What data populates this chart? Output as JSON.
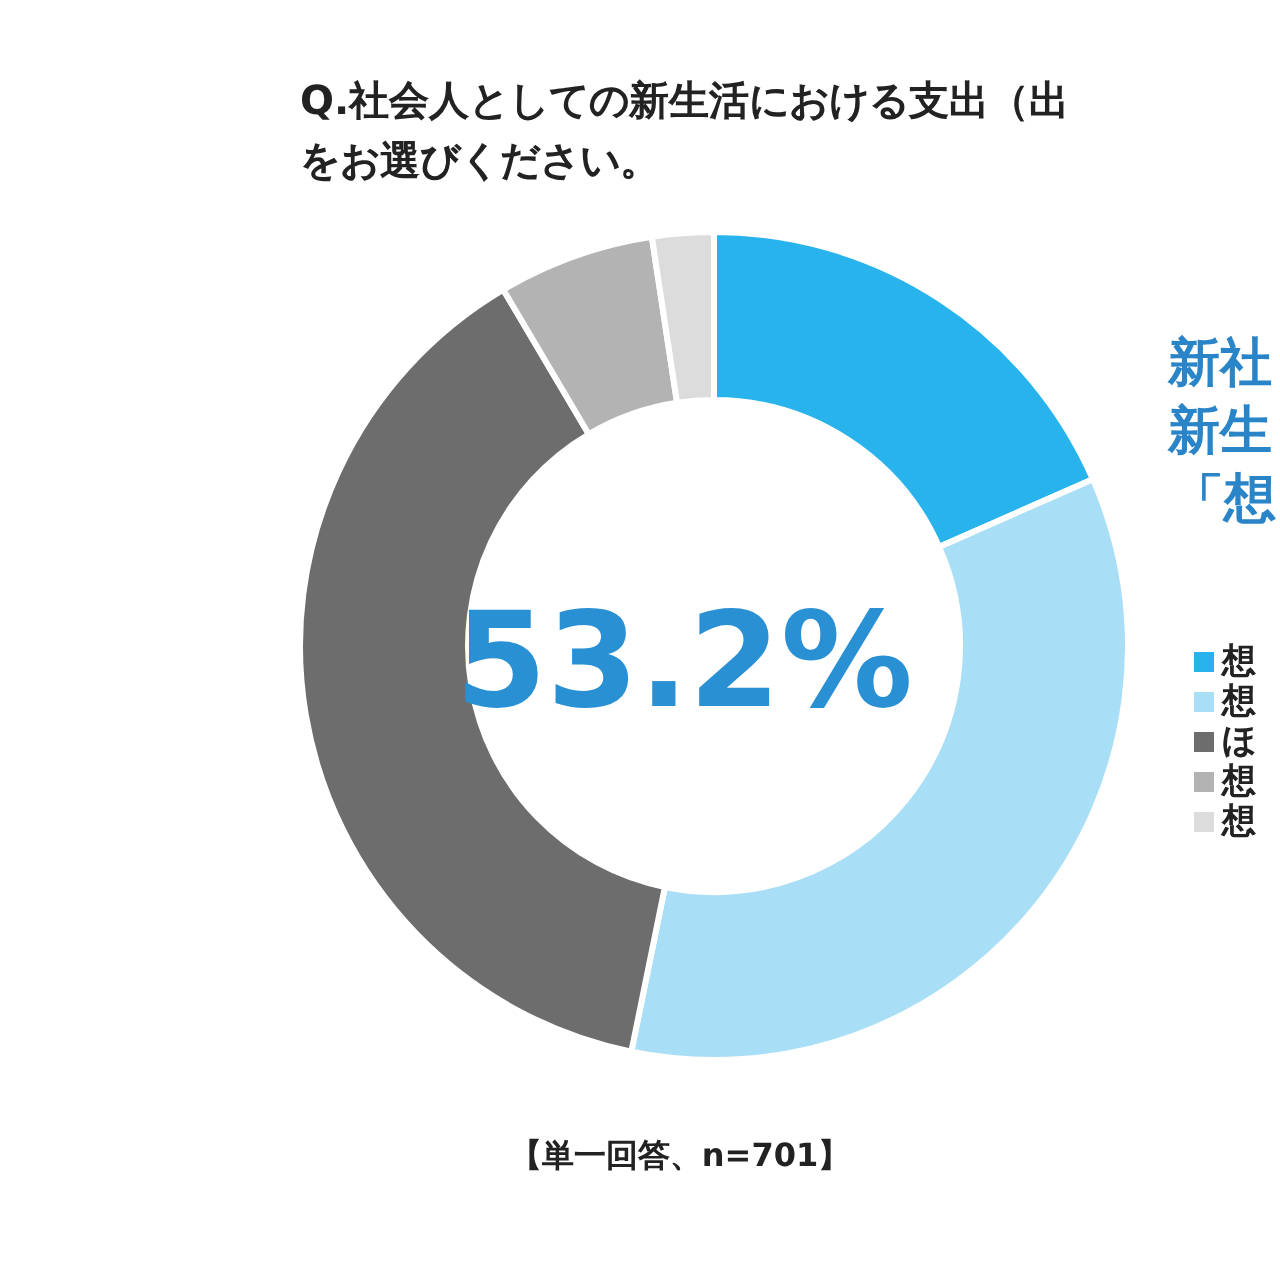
{
  "chart_data": {
    "type": "donut",
    "title": "Q.社会人としての新生活における支出（出",
    "subtitle": "をお選びください。",
    "categories": [
      "想",
      "想",
      "ほ",
      "想",
      "想"
    ],
    "values": [
      18.4,
      34.8,
      38.3,
      6.1,
      2.4
    ],
    "colors": [
      "#29b3ec",
      "#a8def6",
      "#6d6d6d",
      "#b3b3b3",
      "#dcdcdc"
    ],
    "legend": "right",
    "annotations": [
      "53.2%",
      "新社",
      "新生",
      "「想",
      "【単一回答、n=701】"
    ]
  }
}
